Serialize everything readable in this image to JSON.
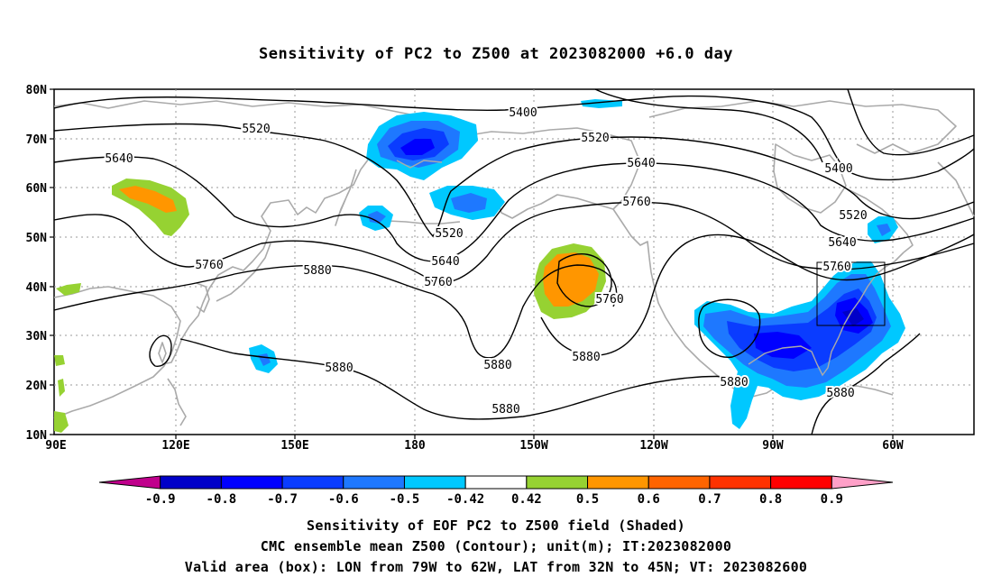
{
  "title": "Sensitivity of PC2 to Z500 at 2023082000 +6.0 day",
  "map": {
    "lat_labels": [
      "80N",
      "70N",
      "60N",
      "50N",
      "40N",
      "30N",
      "20N",
      "10N"
    ],
    "lon_labels": [
      "90E",
      "120E",
      "150E",
      "180",
      "150W",
      "120W",
      "90W",
      "60W"
    ],
    "lon_range": [
      "90E",
      "30W"
    ],
    "lat_range": [
      "10N",
      "80N"
    ],
    "grid": "dotted",
    "contour_labels": [
      "5400",
      "5520",
      "5640",
      "5760",
      "5880",
      "5520",
      "5640",
      "5760",
      "5880",
      "5400",
      "5520",
      "5640",
      "5760",
      "5760",
      "5880",
      "5880",
      "5520",
      "5640",
      "5880",
      "5880",
      "5880"
    ],
    "contour_color": "#000000",
    "coastline_color": "#aaaaaa",
    "valid_box": {
      "lon_from": "79W",
      "lon_to": "62W",
      "lat_from": "32N",
      "lat_to": "45N"
    }
  },
  "colorbar": {
    "labels": [
      "-0.9",
      "-0.8",
      "-0.7",
      "-0.6",
      "-0.5",
      "-0.42",
      "0.42",
      "0.5",
      "0.6",
      "0.7",
      "0.8",
      "0.9"
    ],
    "colors": [
      "#c0008c",
      "#0000c8",
      "#0000ff",
      "#0a3cff",
      "#1e78ff",
      "#00c8ff",
      "#ffffff",
      "#96d232",
      "#ff9600",
      "#ff6400",
      "#ff3200",
      "#ff0000",
      "#ffa0c8"
    ]
  },
  "captions": {
    "line1": "Sensitivity of EOF PC2 to Z500 field (Shaded)",
    "line2": "CMC ensemble mean Z500 (Contour); unit(m); IT:2023082000",
    "line3": "Valid area (box): LON from 79W to 62W, LAT from 32N to 45N; VT: 2023082600"
  }
}
